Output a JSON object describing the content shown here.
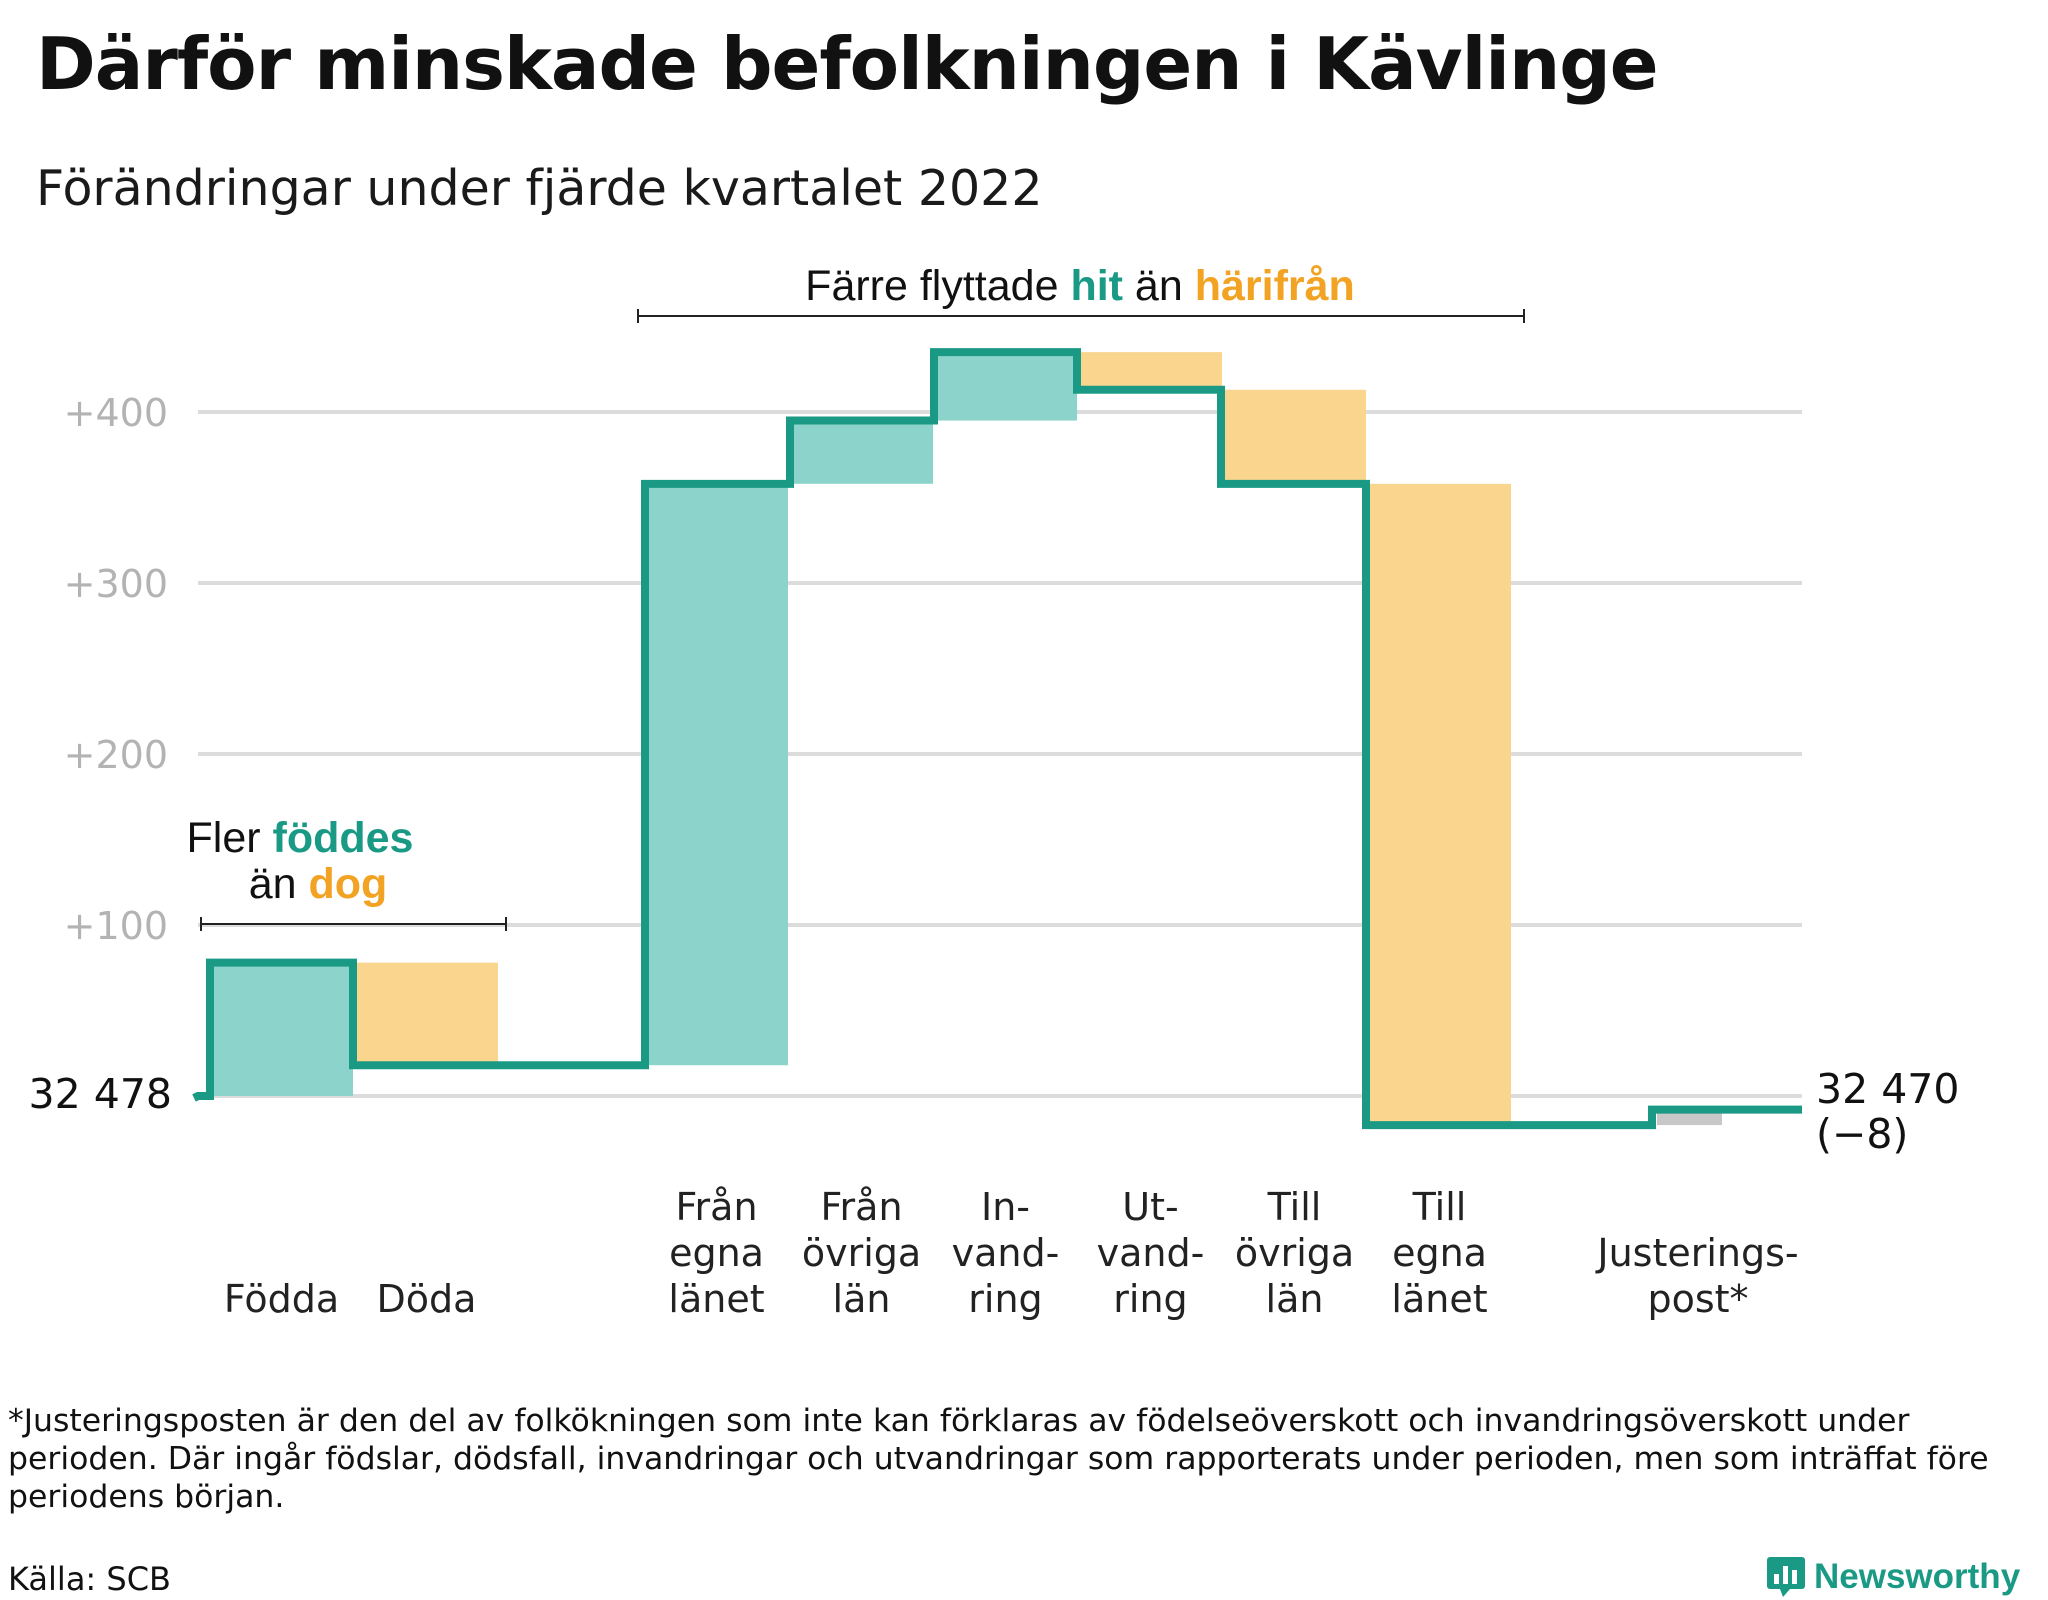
{
  "title": "Därför minskade befolkningen i Kävlinge",
  "subtitle": "Förändringar under fjärde kvartalet 2022",
  "colors": {
    "line": "#1a9a85",
    "increase": "#8cd4cb",
    "decrease": "#fad58e",
    "adjustment": "#c8c8c8",
    "grid": "#dcdcdc",
    "tick": "#b3b3b3",
    "highlight_in": "#1a9a85",
    "highlight_out": "#f2a324"
  },
  "annotations": {
    "births": {
      "line1_prefix": "Fler ",
      "line1_highlight": "föddes",
      "line2_prefix": "än ",
      "line2_highlight": "dog"
    },
    "migration": {
      "prefix": "Färre flyttade ",
      "highlight_in": "hit",
      "middle": " än ",
      "highlight_out": "härifrån"
    }
  },
  "chart_data": {
    "type": "waterfall",
    "baseline_label": "32 478",
    "start_value": 32478,
    "end_label_line1": "32 470",
    "end_label_line2": "(−8)",
    "end_value": 32470,
    "net_change": -8,
    "y_axis": {
      "ticks": [
        100,
        200,
        300,
        400
      ],
      "tick_labels": [
        "+100",
        "+200",
        "+300",
        "+400"
      ],
      "range": [
        -20,
        440
      ],
      "grid": true
    },
    "steps": [
      {
        "label_lines": [
          "Födda"
        ],
        "value": 78,
        "kind": "increase"
      },
      {
        "label_lines": [
          "Döda"
        ],
        "value": -60,
        "kind": "decrease"
      },
      {
        "label_lines": [
          "Från",
          "egna",
          "länet"
        ],
        "value": 340,
        "kind": "increase"
      },
      {
        "label_lines": [
          "Från",
          "övriga",
          "län"
        ],
        "value": 37,
        "kind": "increase"
      },
      {
        "label_lines": [
          "In-",
          "vand-",
          "ring"
        ],
        "value": 40,
        "kind": "increase"
      },
      {
        "label_lines": [
          "Ut-",
          "vand-",
          "ring"
        ],
        "value": -22,
        "kind": "decrease"
      },
      {
        "label_lines": [
          "Till",
          "övriga",
          "län"
        ],
        "value": -55,
        "kind": "decrease"
      },
      {
        "label_lines": [
          "Till",
          "egna",
          "länet"
        ],
        "value": -375,
        "kind": "decrease"
      },
      {
        "label_lines": [
          "Justerings-",
          "post*"
        ],
        "value": 9,
        "kind": "adjustment"
      }
    ]
  },
  "footnote": "*Justeringsposten är den del av folkökningen som inte kan förklaras av födelseöverskott och invandringsöverskott under perioden. Där ingår födslar, dödsfall, invandringar och utvandringar som rapporterats under perioden, men som inträffat före periodens början.",
  "source": "Källa: SCB",
  "logo": {
    "name": "Newsworthy",
    "icon": "newsworthy-logo-icon"
  }
}
